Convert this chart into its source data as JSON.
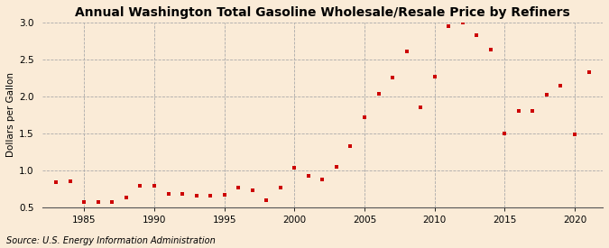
{
  "title": "Annual Washington Total Gasoline Wholesale/Resale Price by Refiners",
  "ylabel": "Dollars per Gallon",
  "source": "Source: U.S. Energy Information Administration",
  "background_color": "#faebd7",
  "marker_color": "#cc0000",
  "years": [
    1983,
    1984,
    1985,
    1986,
    1987,
    1988,
    1989,
    1990,
    1991,
    1992,
    1993,
    1994,
    1995,
    1996,
    1997,
    1998,
    1999,
    2000,
    2001,
    2002,
    2003,
    2004,
    2005,
    2006,
    2007,
    2008,
    2009,
    2010,
    2011,
    2012,
    2013,
    2014,
    2015,
    2016,
    2017,
    2018,
    2019,
    2020,
    2021
  ],
  "values": [
    0.84,
    0.85,
    0.57,
    0.57,
    0.57,
    0.63,
    0.79,
    0.79,
    0.68,
    0.68,
    0.65,
    0.66,
    0.67,
    0.77,
    0.73,
    0.59,
    0.76,
    1.04,
    0.93,
    0.87,
    1.05,
    1.33,
    1.72,
    2.04,
    2.25,
    2.61,
    1.85,
    2.27,
    2.95,
    3.0,
    2.83,
    2.63,
    1.5,
    1.8,
    1.8,
    2.02,
    2.15,
    1.49,
    2.33
  ],
  "xlim": [
    1982,
    2022
  ],
  "ylim": [
    0.5,
    3.0
  ],
  "yticks": [
    0.5,
    1.0,
    1.5,
    2.0,
    2.5,
    3.0
  ],
  "xticks": [
    1985,
    1990,
    1995,
    2000,
    2005,
    2010,
    2015,
    2020
  ],
  "title_fontsize": 10,
  "label_fontsize": 7.5,
  "tick_fontsize": 7.5,
  "source_fontsize": 7,
  "marker_size": 3.5
}
